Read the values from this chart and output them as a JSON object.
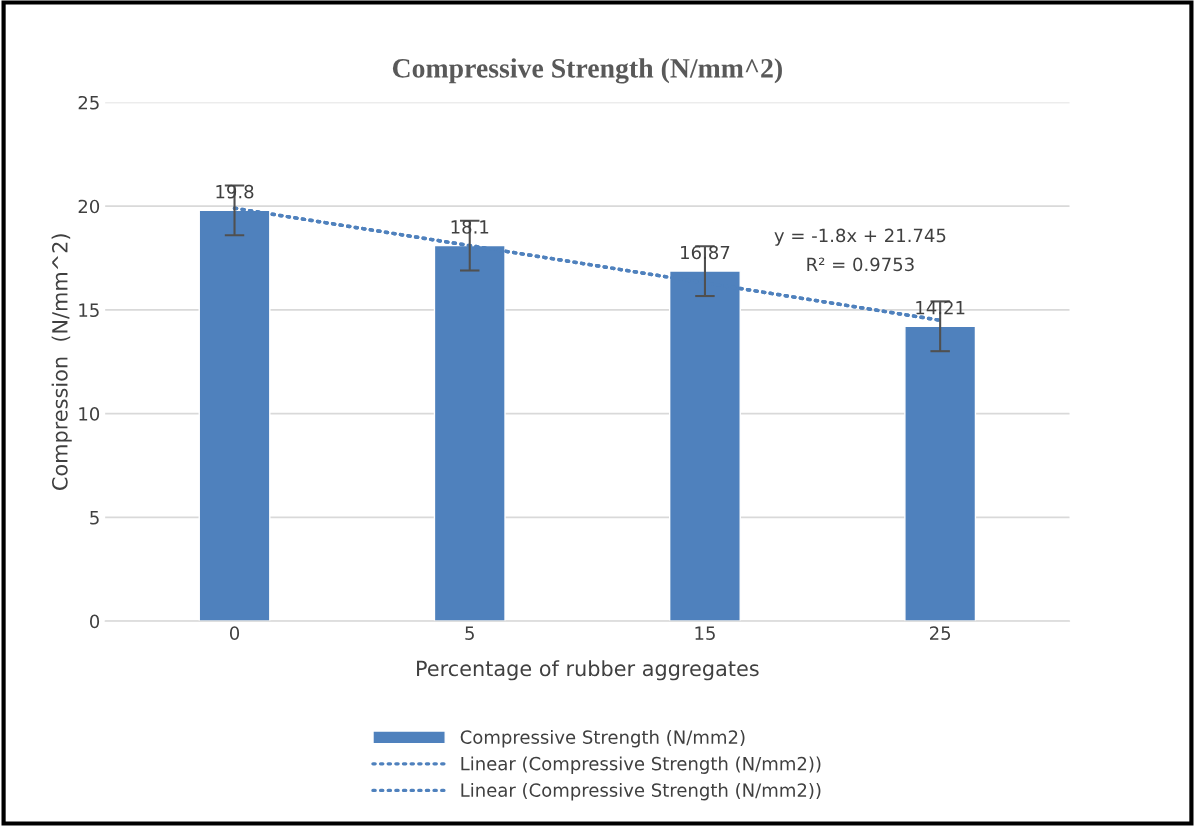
{
  "chart_data": {
    "type": "bar",
    "title": "Compressive Strength (N/mm^2)",
    "xlabel": "Percentage of rubber aggregates",
    "ylabel": "Compression  (N/mm^2)",
    "categories": [
      "0",
      "5",
      "15",
      "25"
    ],
    "series": [
      {
        "name": "Compressive Strength (N/mm2)",
        "color": "#4f81bd",
        "values": [
          19.8,
          18.1,
          16.87,
          14.21
        ],
        "value_labels": [
          "19.8",
          "18.1",
          "16.87",
          "14.21"
        ],
        "errors": [
          1.2,
          1.2,
          1.2,
          1.2
        ]
      },
      {
        "name": "Linear (Compressive Strength (N/mm2))",
        "type": "line",
        "color": "#4f81bd",
        "line_style": "dotted",
        "values": [
          19.9,
          18.1,
          16.3,
          14.5
        ]
      },
      {
        "name": "Linear (Compressive Strength (N/mm2))",
        "type": "line",
        "color": "#4f81bd",
        "line_style": "dotted",
        "values": [
          19.9,
          18.1,
          16.3,
          14.5
        ]
      }
    ],
    "ylim": [
      0,
      25
    ],
    "yticks": [
      0,
      5,
      10,
      15,
      20,
      25
    ],
    "grid": "y",
    "legend": "bottom",
    "annotations": [
      "y = -1.8x + 21.745",
      "R² = 0.9753"
    ]
  }
}
